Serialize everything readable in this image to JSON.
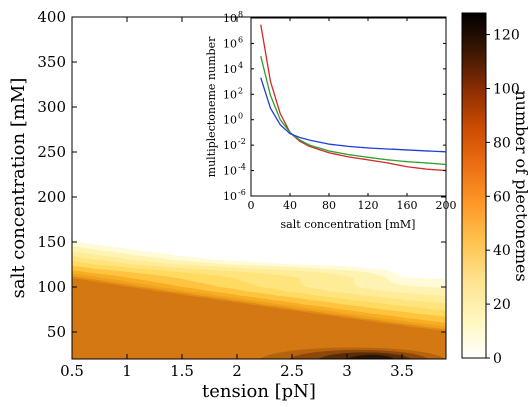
{
  "chart_data": [
    {
      "type": "heatmap",
      "xlabel": "tension [pN]",
      "ylabel": "salt concentration [mM]",
      "x_ticks": [
        0.5,
        1,
        1.5,
        2,
        2.5,
        3,
        3.5
      ],
      "x_tick_labels": [
        "0.5",
        "1",
        "1.5",
        "2",
        "2.5",
        "3",
        "3.5"
      ],
      "y_ticks": [
        50,
        100,
        150,
        200,
        250,
        300,
        350,
        400
      ],
      "y_tick_labels": [
        "50",
        "100",
        "150",
        "200",
        "250",
        "300",
        "350",
        "400"
      ],
      "xlim": [
        0.5,
        3.9
      ],
      "ylim": [
        20,
        400
      ],
      "colorbar": {
        "label": "number of plectonemes",
        "range": [
          0,
          128
        ],
        "ticks": [
          0,
          20,
          40,
          60,
          80,
          100,
          120
        ],
        "tick_labels": [
          "0",
          "20",
          "40",
          "60",
          "80",
          "100",
          "120"
        ],
        "colormap": [
          "#ffffff",
          "#fff7bc",
          "#fee391",
          "#fec44f",
          "#fe9929",
          "#ec7014",
          "#cc4c02",
          "#8c2d04",
          "#3b1703",
          "#000000"
        ]
      },
      "contour_levels": [
        0.5,
        1,
        2,
        4,
        8,
        16,
        32,
        50,
        70,
        90
      ],
      "contour_colors": [
        "#fffbd8",
        "#fff3b3",
        "#ffec98",
        "#ffe47e",
        "#ffda60",
        "#fec440",
        "#f8ad24",
        "#eea11c",
        "#e18b16",
        "#d37812"
      ],
      "dark_band": {
        "x_range": [
          2.2,
          3.9
        ],
        "y_range": [
          20,
          35
        ],
        "peak_x": 3.2,
        "peak_value": 128
      }
    },
    {
      "type": "line",
      "title": "",
      "xlabel": "salt concentration [mM]",
      "ylabel": "multiplectoneme number",
      "xlim": [
        0,
        200
      ],
      "ylim": [
        1e-06,
        100000000.0
      ],
      "yscale": "log",
      "x_ticks": [
        0,
        40,
        80,
        120,
        160,
        200
      ],
      "x_tick_labels": [
        "0",
        "40",
        "80",
        "120",
        "160",
        "200"
      ],
      "y_tick_exponents": [
        -6,
        -4,
        -2,
        0,
        2,
        4,
        6,
        8
      ],
      "series": [
        {
          "color": "#d62728",
          "x": [
            10,
            20,
            30,
            40,
            50,
            60,
            80,
            100,
            120,
            140,
            160,
            180,
            200
          ],
          "values": [
            30000000.0,
            1000.0,
            3,
            0.1,
            0.02,
            0.008,
            0.0025,
            0.0012,
            0.0007,
            0.0004,
            0.0002,
            0.00013,
            0.0001
          ]
        },
        {
          "color": "#2ca02c",
          "x": [
            10,
            20,
            30,
            40,
            50,
            60,
            80,
            100,
            120,
            140,
            160,
            180,
            200
          ],
          "values": [
            100000.0,
            80,
            1,
            0.1,
            0.025,
            0.01,
            0.0035,
            0.0018,
            0.0011,
            0.0007,
            0.0005,
            0.0004,
            0.0003
          ]
        },
        {
          "color": "#1f3fd8",
          "x": [
            10,
            20,
            30,
            40,
            50,
            60,
            80,
            100,
            120,
            140,
            160,
            180,
            200
          ],
          "values": [
            2000,
            8,
            0.4,
            0.08,
            0.04,
            0.025,
            0.012,
            0.008,
            0.006,
            0.005,
            0.0042,
            0.0035,
            0.003
          ]
        }
      ]
    }
  ]
}
